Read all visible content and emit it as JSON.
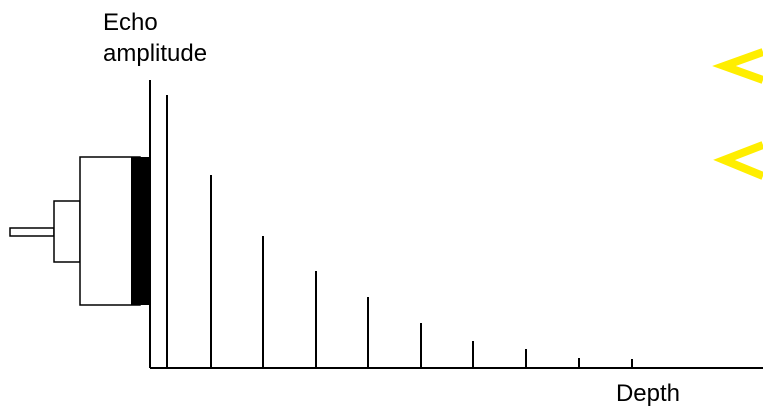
{
  "y_axis_label": [
    "Echo",
    "amplitude"
  ],
  "x_axis_label": "Depth"
}
